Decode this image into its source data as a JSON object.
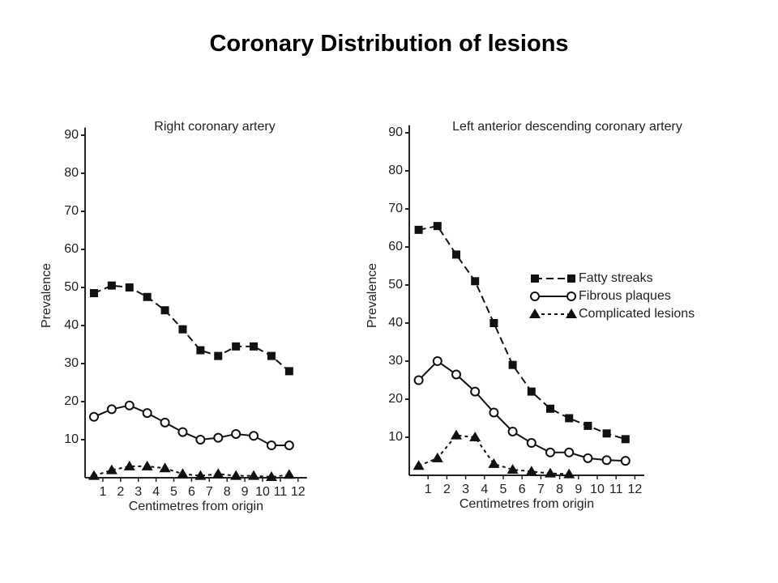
{
  "title": "Coronary Distribution of lesions",
  "chart_data": [
    {
      "type": "line",
      "title": "Right coronary artery",
      "xlabel": "Centimetres from origin",
      "ylabel": "Prevalence",
      "x": [
        0.5,
        1.5,
        2.5,
        3.5,
        4.5,
        5.5,
        6.5,
        7.5,
        8.5,
        9.5,
        10.5,
        11.5
      ],
      "series": [
        {
          "color": "#111111",
          "marker": "square",
          "dash": "9 5",
          "values": [
            48.5,
            50.5,
            50,
            47.5,
            44,
            39,
            33.5,
            32,
            34.5,
            34.5,
            32,
            28
          ]
        },
        {
          "color": "#111111",
          "marker": "circle",
          "dash": "none",
          "values": [
            16,
            18,
            19,
            17,
            14.5,
            12,
            10,
            10.5,
            11.5,
            11,
            8.5,
            8.5
          ]
        },
        {
          "color": "#111111",
          "marker": "triangle",
          "dash": "4 4",
          "values": [
            0.5,
            2,
            3,
            3,
            2.5,
            1,
            0.5,
            1,
            0.5,
            0.5,
            0.2,
            0.8
          ]
        }
      ],
      "xlim": [
        0,
        12.5
      ],
      "xticks": [
        1,
        2,
        3,
        4,
        5,
        6,
        7,
        8,
        9,
        10,
        11,
        12
      ],
      "ylim": [
        0,
        92
      ],
      "yticks": [
        10,
        20,
        30,
        40,
        50,
        60,
        70,
        80,
        90
      ],
      "legend": false
    },
    {
      "type": "line",
      "title": "Left anterior descending coronary artery",
      "xlabel": "Centimetres from origin",
      "ylabel": "Prevalence",
      "x": [
        0.5,
        1.5,
        2.5,
        3.5,
        4.5,
        5.5,
        6.5,
        7.5,
        8.5,
        9.5,
        10.5,
        11.5
      ],
      "series": [
        {
          "name": "Fatty streaks",
          "color": "#111111",
          "marker": "square",
          "dash": "9 5",
          "values": [
            64.5,
            65.5,
            58,
            51,
            40,
            29,
            22,
            17.5,
            15,
            13,
            11,
            9.5
          ]
        },
        {
          "name": "Fibrous plaques",
          "color": "#111111",
          "marker": "circle",
          "dash": "none",
          "values": [
            25,
            30,
            26.5,
            22,
            16.5,
            11.5,
            8.5,
            6,
            6,
            4.5,
            4,
            3.8
          ]
        },
        {
          "name": "Complicated lesions",
          "color": "#111111",
          "marker": "triangle",
          "dash": "4 4",
          "values": [
            2.5,
            4.5,
            10.5,
            10,
            3,
            1.5,
            1,
            0.5,
            0.3,
            null,
            null,
            null
          ]
        }
      ],
      "xlim": [
        0,
        12.5
      ],
      "xticks": [
        1,
        2,
        3,
        4,
        5,
        6,
        7,
        8,
        9,
        10,
        11,
        12
      ],
      "ylim": [
        0,
        92
      ],
      "yticks": [
        10,
        20,
        30,
        40,
        50,
        60,
        70,
        80,
        90
      ],
      "legend": true
    }
  ]
}
